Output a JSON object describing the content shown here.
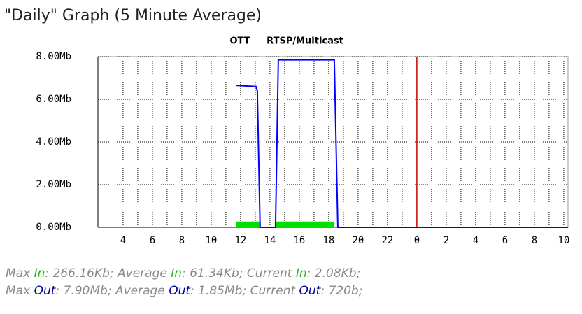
{
  "chart_data": {
    "type": "line",
    "title": "\"Daily\" Graph (5 Minute Average)",
    "annotations": [
      "OTT",
      "RTSP/Multicast"
    ],
    "x": [
      11.71,
      13.05,
      13.14,
      13.33,
      13.4,
      14.38,
      14.57,
      18.38,
      18.62,
      34.29
    ],
    "series": [
      {
        "name": "In",
        "color": "#00e000",
        "style": "area",
        "values": [
          0.27,
          0.27,
          0.27,
          0.27,
          null,
          0.27,
          0.27,
          0.27,
          null,
          null
        ]
      },
      {
        "name": "Out",
        "color": "#0000ff",
        "style": "line",
        "values": [
          6.65,
          6.6,
          6.4,
          0,
          0,
          0,
          7.85,
          7.85,
          0,
          0
        ]
      }
    ],
    "xlim": [
      2.29,
      34.29
    ],
    "xticks": [
      4,
      6,
      8,
      10,
      12,
      14,
      16,
      18,
      20,
      22,
      {
        "value": 24,
        "label": "0"
      },
      {
        "value": 26,
        "label": "2"
      },
      {
        "value": 28,
        "label": "4"
      },
      {
        "value": 30,
        "label": "6"
      },
      {
        "value": 32,
        "label": "8"
      },
      {
        "value": 34,
        "label": "10"
      }
    ],
    "ylim": [
      0,
      8
    ],
    "yticks": [
      {
        "value": 0,
        "label": "0.00Mb"
      },
      {
        "value": 2,
        "label": "2.00Mb"
      },
      {
        "value": 4,
        "label": "4.00Mb"
      },
      {
        "value": 6,
        "label": "6.00Mb"
      },
      {
        "value": 8,
        "label": "8.00Mb"
      }
    ],
    "grid": true,
    "vline": {
      "value": 24,
      "color": "#cc0000"
    }
  },
  "summary": [
    [
      {
        "text": "Max "
      },
      {
        "text": "In",
        "color": "#22bb22"
      },
      {
        "text": ": 266.16Kb; Average "
      },
      {
        "text": "In",
        "color": "#22bb22"
      },
      {
        "text": ": 61.34Kb; Current "
      },
      {
        "text": "In",
        "color": "#22bb22"
      },
      {
        "text": ": 2.08Kb;"
      }
    ],
    [
      {
        "text": "Max "
      },
      {
        "text": "Out",
        "color": "#000099"
      },
      {
        "text": ": 7.90Mb; Average "
      },
      {
        "text": "Out",
        "color": "#000099"
      },
      {
        "text": ": 1.85Mb; Current "
      },
      {
        "text": "Out",
        "color": "#000099"
      },
      {
        "text": ": 720b;"
      }
    ]
  ]
}
